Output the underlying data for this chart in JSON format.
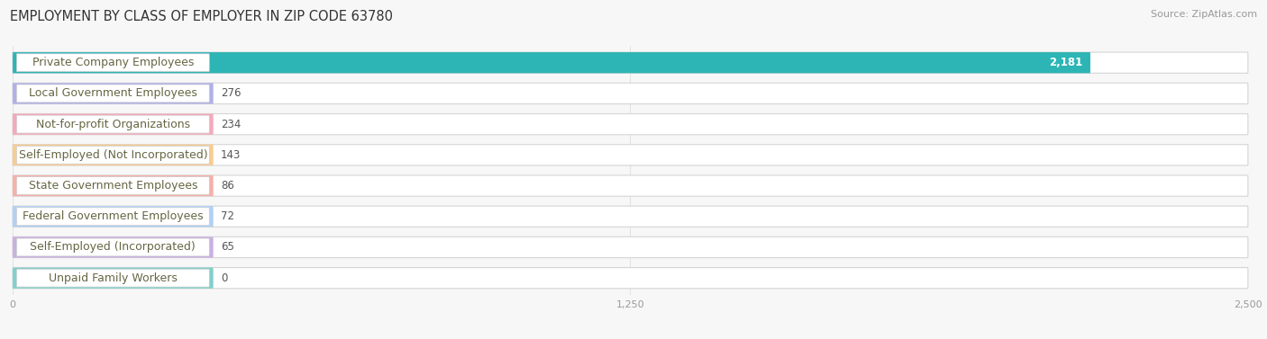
{
  "title": "EMPLOYMENT BY CLASS OF EMPLOYER IN ZIP CODE 63780",
  "source": "Source: ZipAtlas.com",
  "categories": [
    "Private Company Employees",
    "Local Government Employees",
    "Not-for-profit Organizations",
    "Self-Employed (Not Incorporated)",
    "State Government Employees",
    "Federal Government Employees",
    "Self-Employed (Incorporated)",
    "Unpaid Family Workers"
  ],
  "values": [
    2181,
    276,
    234,
    143,
    86,
    72,
    65,
    0
  ],
  "bar_colors": [
    "#2db5b5",
    "#b0b0e8",
    "#f5a8bc",
    "#f8cc90",
    "#f5b0a8",
    "#b0d0f5",
    "#c8b0e0",
    "#80d0cc"
  ],
  "xlim": [
    0,
    2500
  ],
  "xticks": [
    0,
    1250,
    2500
  ],
  "xtick_labels": [
    "0",
    "1,250",
    "2,500"
  ],
  "background_color": "#f7f7f7",
  "title_fontsize": 10.5,
  "label_fontsize": 9,
  "value_fontsize": 8.5,
  "source_fontsize": 8
}
